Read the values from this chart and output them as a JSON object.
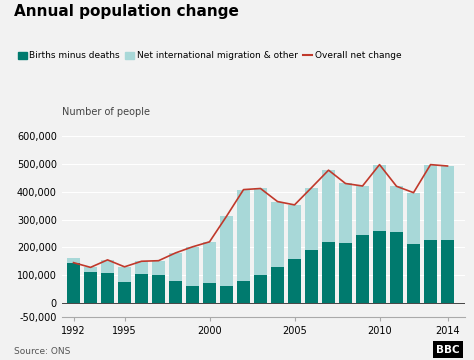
{
  "title": "Annual population change",
  "ylabel": "Number of people",
  "source": "Source: ONS",
  "years": [
    1992,
    1993,
    1994,
    1995,
    1996,
    1997,
    1998,
    1999,
    2000,
    2001,
    2002,
    2003,
    2004,
    2005,
    2006,
    2007,
    2008,
    2009,
    2010,
    2011,
    2012,
    2013,
    2014
  ],
  "births_minus_deaths": [
    160000,
    110000,
    107000,
    75000,
    103000,
    102000,
    78000,
    62000,
    73000,
    62000,
    78000,
    102000,
    130000,
    158000,
    190000,
    218000,
    215000,
    246000,
    258000,
    255000,
    212000,
    228000,
    228000
  ],
  "net_migration": [
    -15000,
    18000,
    48000,
    55000,
    47000,
    50000,
    102000,
    140000,
    147000,
    250000,
    330000,
    310000,
    235000,
    195000,
    225000,
    260000,
    215000,
    175000,
    240000,
    165000,
    185000,
    270000,
    265000
  ],
  "overall_net_change": [
    145000,
    128000,
    155000,
    130000,
    150000,
    152000,
    180000,
    202000,
    220000,
    312000,
    408000,
    412000,
    365000,
    353000,
    415000,
    478000,
    430000,
    421000,
    498000,
    420000,
    397000,
    498000,
    493000
  ],
  "color_births": "#007a6e",
  "color_migration": "#a8d8d8",
  "color_line": "#c0392b",
  "ylim": [
    -50000,
    650000
  ],
  "yticks": [
    -50000,
    0,
    100000,
    200000,
    300000,
    400000,
    500000,
    600000
  ],
  "ytick_labels": [
    "-50,000",
    "0",
    "100,000",
    "200,000",
    "300,000",
    "400,000",
    "500,000",
    "600,000"
  ],
  "xtick_positions": [
    1992,
    1995,
    2000,
    2005,
    2010,
    2014
  ],
  "xtick_labels": [
    "1992",
    "1995",
    "2000",
    "2005",
    "2010",
    "2014"
  ],
  "background_color": "#f2f2f2",
  "title_fontsize": 11,
  "label_fontsize": 7,
  "legend_fontsize": 6.5,
  "tick_fontsize": 7
}
